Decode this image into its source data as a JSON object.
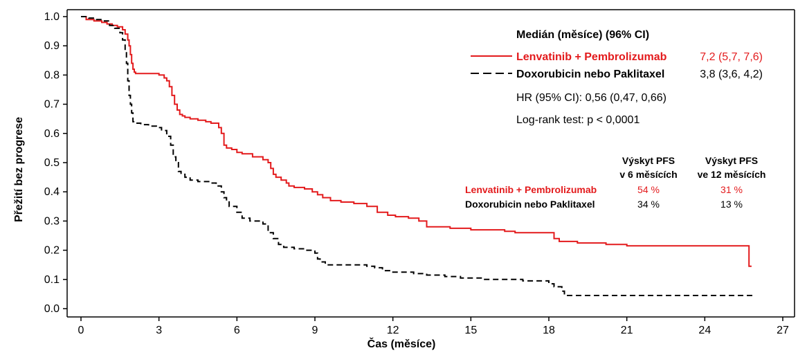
{
  "chart_data": {
    "type": "line",
    "subtype": "kaplan-meier step curve",
    "xlabel": "Čas (měsíce)",
    "ylabel": "Přežití bez progrese",
    "xlim": [
      0,
      27
    ],
    "ylim": [
      0,
      1.0
    ],
    "x_ticks": [
      0,
      3,
      6,
      9,
      12,
      15,
      18,
      21,
      24,
      27
    ],
    "y_ticks": [
      "0.0",
      "0.1",
      "0.2",
      "0.3",
      "0.4",
      "0.5",
      "0.6",
      "0.7",
      "0.8",
      "0.9",
      "1.0"
    ],
    "grid": false,
    "legend": {
      "placement": "top-right",
      "header": "Medián (měsíce) (96% CI)",
      "hr_text": "HR (95% CI): 0,56 (0,47, 0,66)",
      "logrank_text": "Log-rank test: p < 0,0001"
    },
    "table": {
      "col1_header_line1": "Výskyt PFS",
      "col1_header_line2": "v 6 měsících",
      "col2_header_line1": "Výskyt PFS",
      "col2_header_line2": "ve 12 měsících"
    },
    "series": [
      {
        "name": "Lenvatinib + Pembrolizumab",
        "median": "7,2 (5,7, 7,6)",
        "pfs_6m": "54 %",
        "pfs_12m": "31 %",
        "color": "#e31a1c",
        "style": "solid",
        "x": [
          0,
          0.2,
          0.5,
          0.8,
          1.0,
          1.2,
          1.4,
          1.6,
          1.7,
          1.8,
          1.85,
          1.9,
          1.95,
          2.0,
          2.05,
          2.1,
          3.0,
          3.2,
          3.3,
          3.4,
          3.5,
          3.6,
          3.7,
          3.8,
          3.9,
          4.0,
          4.2,
          4.5,
          4.8,
          5.0,
          5.3,
          5.4,
          5.5,
          5.6,
          5.8,
          6.0,
          6.2,
          6.6,
          7.0,
          7.2,
          7.3,
          7.4,
          7.5,
          7.7,
          7.9,
          8.0,
          8.2,
          8.6,
          8.9,
          9.1,
          9.3,
          9.6,
          10.0,
          10.5,
          11.0,
          11.4,
          11.8,
          12.1,
          12.6,
          13.0,
          13.3,
          14.2,
          15.0,
          16.3,
          16.7,
          18.2,
          18.4,
          19.1,
          20.2,
          21.0,
          22.0,
          23.0,
          24.0,
          25.0,
          25.6,
          25.7,
          25.8
        ],
        "y": [
          1.0,
          0.99,
          0.985,
          0.98,
          0.975,
          0.97,
          0.965,
          0.955,
          0.94,
          0.92,
          0.9,
          0.87,
          0.84,
          0.82,
          0.81,
          0.805,
          0.8,
          0.79,
          0.78,
          0.76,
          0.73,
          0.7,
          0.68,
          0.665,
          0.66,
          0.655,
          0.65,
          0.645,
          0.64,
          0.635,
          0.62,
          0.6,
          0.56,
          0.55,
          0.545,
          0.535,
          0.53,
          0.52,
          0.51,
          0.5,
          0.48,
          0.46,
          0.45,
          0.44,
          0.43,
          0.42,
          0.415,
          0.41,
          0.4,
          0.39,
          0.38,
          0.37,
          0.365,
          0.36,
          0.35,
          0.33,
          0.32,
          0.315,
          0.31,
          0.3,
          0.28,
          0.275,
          0.27,
          0.265,
          0.26,
          0.24,
          0.23,
          0.225,
          0.22,
          0.215,
          0.215,
          0.215,
          0.215,
          0.215,
          0.215,
          0.145,
          0.145
        ]
      },
      {
        "name": "Doxorubicin nebo Paklitaxel",
        "median": "3,8 (3,6, 4,2)",
        "pfs_6m": "34 %",
        "pfs_12m": "13 %",
        "color": "#000000",
        "style": "dashed",
        "x": [
          0,
          0.3,
          0.6,
          0.9,
          1.1,
          1.3,
          1.5,
          1.6,
          1.7,
          1.75,
          1.8,
          1.85,
          1.9,
          1.95,
          2.0,
          2.1,
          2.3,
          2.6,
          2.9,
          3.1,
          3.3,
          3.45,
          3.55,
          3.65,
          3.75,
          3.85,
          4.0,
          4.2,
          4.5,
          5.0,
          5.2,
          5.4,
          5.5,
          5.6,
          5.7,
          6.0,
          6.2,
          6.5,
          7.0,
          7.2,
          7.4,
          7.6,
          7.8,
          8.2,
          8.6,
          9.0,
          9.1,
          9.2,
          9.4,
          10.5,
          11.0,
          11.3,
          11.6,
          12.0,
          12.8,
          13.3,
          14.0,
          14.6,
          15.5,
          17.0,
          18.0,
          18.2,
          18.5,
          18.6,
          20.0,
          22.0,
          24.0,
          25.9
        ],
        "y": [
          1.0,
          0.995,
          0.99,
          0.985,
          0.97,
          0.96,
          0.945,
          0.92,
          0.88,
          0.84,
          0.78,
          0.73,
          0.7,
          0.67,
          0.64,
          0.635,
          0.63,
          0.625,
          0.62,
          0.61,
          0.59,
          0.56,
          0.52,
          0.5,
          0.47,
          0.46,
          0.45,
          0.44,
          0.435,
          0.43,
          0.42,
          0.4,
          0.38,
          0.37,
          0.35,
          0.33,
          0.31,
          0.3,
          0.29,
          0.26,
          0.24,
          0.22,
          0.21,
          0.205,
          0.2,
          0.19,
          0.17,
          0.16,
          0.15,
          0.15,
          0.145,
          0.14,
          0.13,
          0.125,
          0.12,
          0.115,
          0.11,
          0.105,
          0.1,
          0.095,
          0.085,
          0.075,
          0.06,
          0.045,
          0.045,
          0.045,
          0.045,
          0.045
        ]
      }
    ]
  }
}
